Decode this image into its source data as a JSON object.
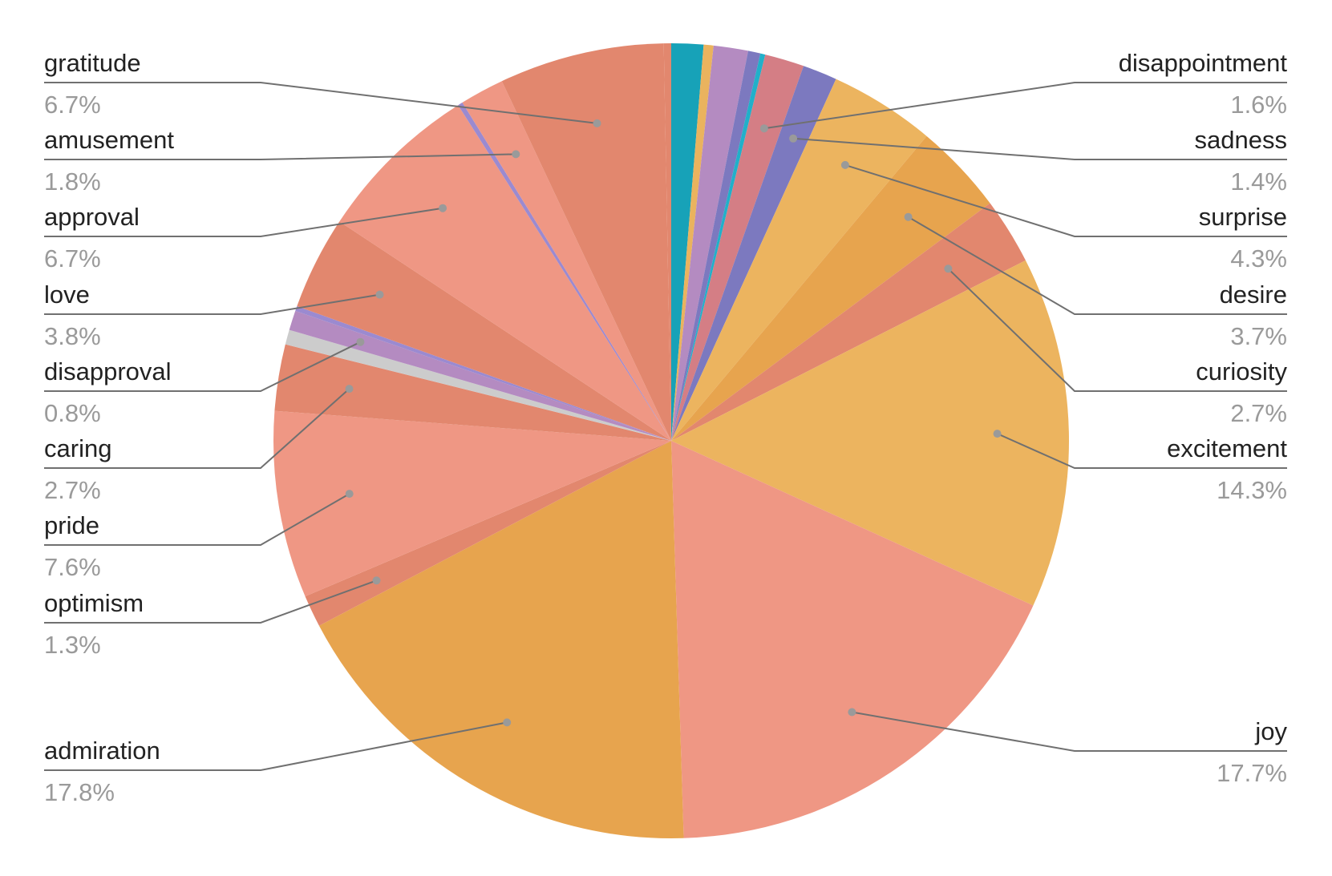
{
  "chart_data": {
    "type": "pie",
    "title": "",
    "start_angle_deg": 0,
    "direction": "clockwise",
    "legend": "none",
    "labels_visible": [
      "gratitude",
      "amusement",
      "approval",
      "love",
      "disapproval",
      "caring",
      "pride",
      "optimism",
      "admiration",
      "joy",
      "excitement",
      "curiosity",
      "desire",
      "surprise",
      "sadness",
      "disappointment"
    ],
    "slices": [
      {
        "name": "",
        "value": 1.3,
        "color": "#17a2b8"
      },
      {
        "name": "",
        "value": 0.4,
        "color": "#eab35e"
      },
      {
        "name": "",
        "value": 1.4,
        "color": "#b48bc1"
      },
      {
        "name": "",
        "value": 0.5,
        "color": "#7c79bf"
      },
      {
        "name": "",
        "value": 0.2,
        "color": "#21b0c9"
      },
      {
        "name": "disappointment",
        "value": 1.6,
        "color": "#d47e85",
        "label": "disappointment",
        "value_label": "1.6%"
      },
      {
        "name": "sadness",
        "value": 1.4,
        "color": "#7c79bf",
        "label": "sadness",
        "value_label": "1.4%"
      },
      {
        "name": "surprise",
        "value": 4.3,
        "color": "#ecb45f",
        "label": "surprise",
        "value_label": "4.3%"
      },
      {
        "name": "desire",
        "value": 3.7,
        "color": "#e7a44e",
        "label": "desire",
        "value_label": "3.7%"
      },
      {
        "name": "curiosity",
        "value": 2.7,
        "color": "#e2876e",
        "label": "curiosity",
        "value_label": "2.7%"
      },
      {
        "name": "excitement",
        "value": 14.3,
        "color": "#ecb45f",
        "label": "excitement",
        "value_label": "14.3%"
      },
      {
        "name": "joy",
        "value": 17.7,
        "color": "#ef9784",
        "label": "joy",
        "value_label": "17.7%"
      },
      {
        "name": "admiration",
        "value": 17.8,
        "color": "#e7a44e",
        "label": "admiration",
        "value_label": "17.8%"
      },
      {
        "name": "optimism",
        "value": 1.3,
        "color": "#e2876e",
        "label": "optimism",
        "value_label": "1.3%"
      },
      {
        "name": "pride",
        "value": 7.6,
        "color": "#ef9784",
        "label": "pride",
        "value_label": "7.6%"
      },
      {
        "name": "caring",
        "value": 2.7,
        "color": "#e2876e",
        "label": "caring",
        "value_label": "2.7%"
      },
      {
        "name": "",
        "value": 0.6,
        "color": "#cccccc"
      },
      {
        "name": "disapproval",
        "value": 0.8,
        "color": "#b48bc1",
        "label": "disapproval",
        "value_label": "0.8%"
      },
      {
        "name": "",
        "value": 0.2,
        "color": "#9b8ad0"
      },
      {
        "name": "love",
        "value": 3.8,
        "color": "#e2876e",
        "label": "love",
        "value_label": "3.8%"
      },
      {
        "name": "approval",
        "value": 6.7,
        "color": "#ef9784",
        "label": "approval",
        "value_label": "6.7%"
      },
      {
        "name": "",
        "value": 0.2,
        "color": "#9b8ad0"
      },
      {
        "name": "amusement",
        "value": 1.8,
        "color": "#ef9784",
        "label": "amusement",
        "value_label": "1.8%"
      },
      {
        "name": "gratitude",
        "value": 6.7,
        "color": "#e2876e",
        "label": "gratitude",
        "value_label": "6.7%"
      },
      {
        "name": "",
        "value": 0.3,
        "color": "#e2876e"
      }
    ]
  }
}
